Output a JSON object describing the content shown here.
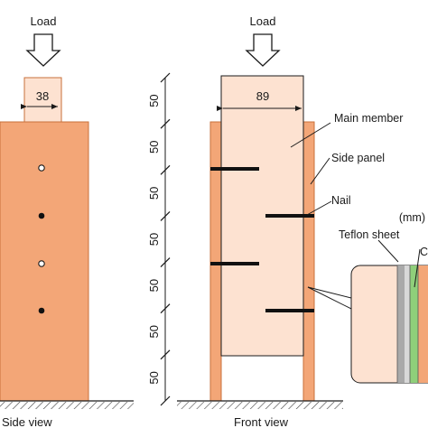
{
  "side_view": {
    "load_label": "Load",
    "width_label": "38",
    "caption": "Side view"
  },
  "front_view": {
    "load_label": "Load",
    "width_label": "89",
    "caption": "Front view",
    "spacing_labels": [
      "50",
      "50",
      "50",
      "50",
      "50",
      "50",
      "50"
    ]
  },
  "callouts": {
    "main_member": "Main member",
    "side_panel": "Side panel",
    "nail": "Nail",
    "teflon_sheet": "Teflon sheet",
    "unit": "(mm)",
    "cut_letter": "C"
  },
  "colors": {
    "wood": "#f3a677",
    "main_member_fill": "#fde2d1",
    "wood_stroke": "#c8703b",
    "nail": "#111111",
    "teflon_gray": "#a9a9a9",
    "teflon_green": "#8fcf7a",
    "inset_fill": "#fde2d1"
  }
}
